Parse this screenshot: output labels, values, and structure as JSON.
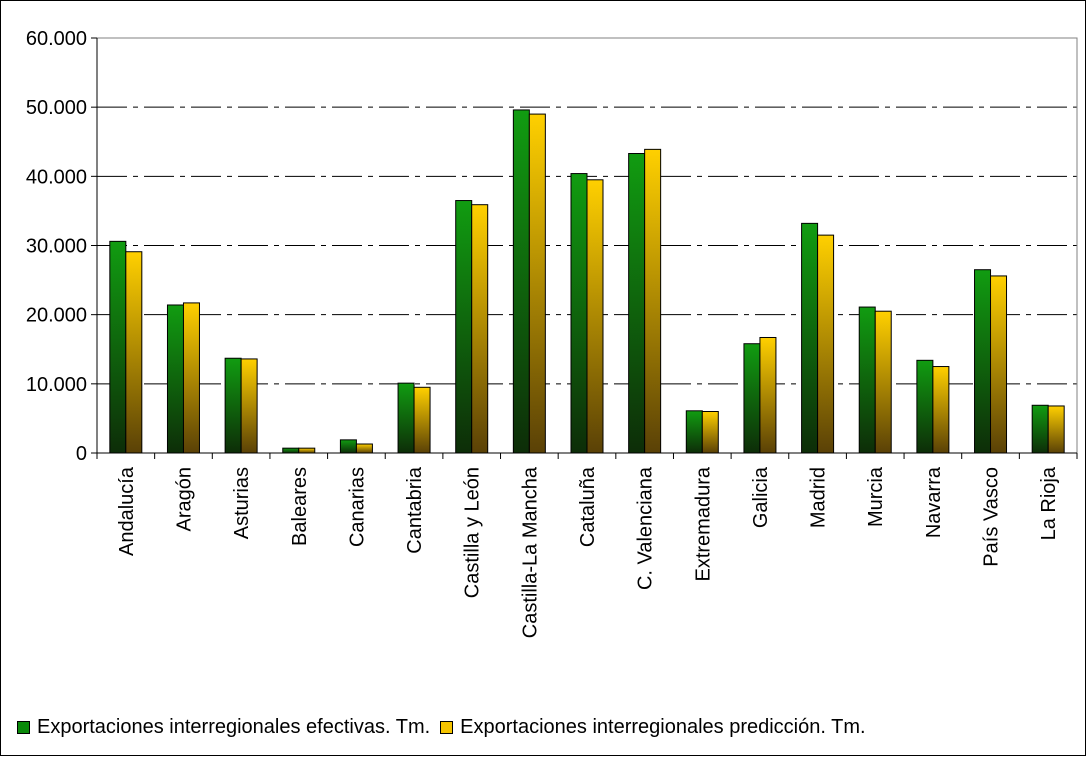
{
  "chart_data": {
    "type": "bar",
    "categories": [
      "Andalucía",
      "Aragón",
      "Asturias",
      "Baleares",
      "Canarias",
      "Cantabria",
      "Castilla y León",
      "Castilla-La Mancha",
      "Cataluña",
      "C. Valenciana",
      "Extremadura",
      "Galicia",
      "Madrid",
      "Murcia",
      "Navarra",
      "País Vasco",
      "La Rioja"
    ],
    "series": [
      {
        "name": "Exportaciones interregionales efectivas. Tm.",
        "color": "#0a8a0a",
        "values": [
          30600,
          21400,
          13700,
          700,
          1900,
          10100,
          36500,
          49600,
          40400,
          43300,
          6100,
          15800,
          33200,
          21100,
          13400,
          26500,
          6900
        ]
      },
      {
        "name": "Exportaciones interregionales predicción. Tm.",
        "color": "#f5c400",
        "values": [
          29100,
          21700,
          13600,
          700,
          1300,
          9500,
          35900,
          49000,
          39500,
          43900,
          6000,
          16700,
          31500,
          20500,
          12500,
          25600,
          6800
        ]
      }
    ],
    "y_ticks": [
      "0",
      "10.000",
      "20.000",
      "30.000",
      "40.000",
      "50.000",
      "60.000"
    ],
    "ylim": [
      0,
      60000
    ],
    "y_step": 10000,
    "grid": true,
    "legend_position": "bottom"
  }
}
